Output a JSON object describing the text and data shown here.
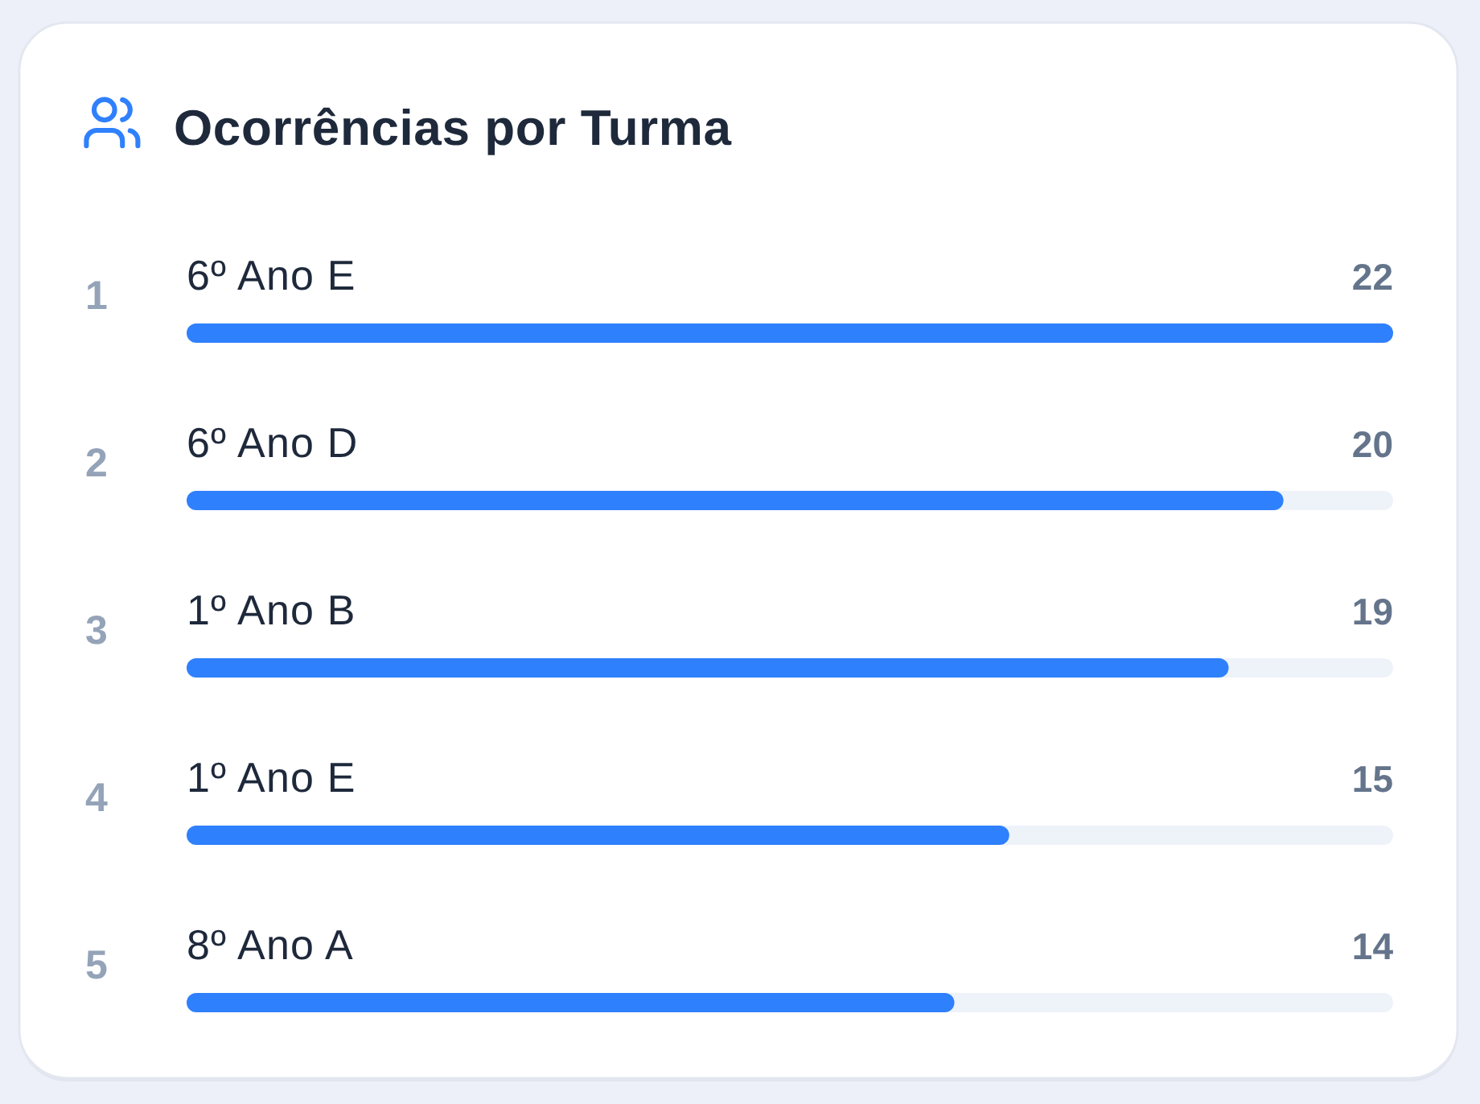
{
  "chart_data": {
    "type": "bar",
    "orientation": "horizontal",
    "title": "Ocorrências por Turma",
    "categories": [
      "6º Ano E",
      "6º Ano D",
      "1º Ano B",
      "1º Ano E",
      "8º Ano A"
    ],
    "values": [
      22,
      20,
      19,
      15,
      14
    ],
    "color": "#2f80fc",
    "xlim": [
      0,
      22
    ],
    "data_labels": true,
    "tick_labels": "y",
    "annotations": [
      "1",
      "2",
      "3",
      "4",
      "5"
    ]
  }
}
